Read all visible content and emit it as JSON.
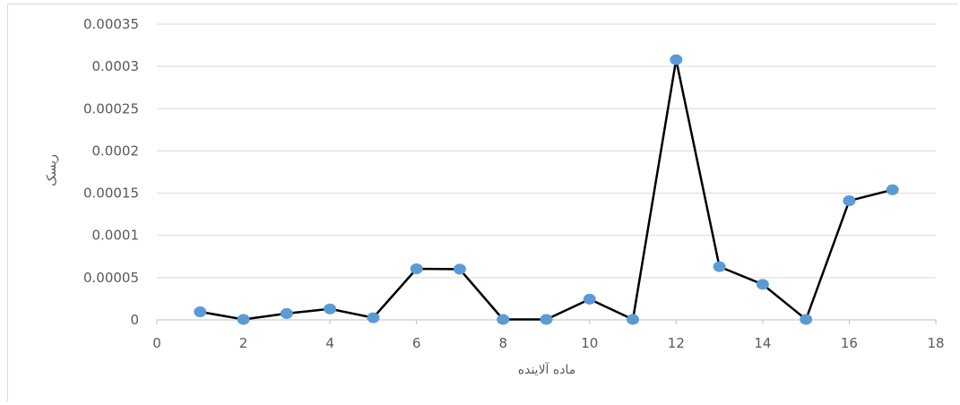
{
  "chart_data": {
    "type": "scatter",
    "title": "",
    "xlabel": "ماده آلاینده",
    "ylabel": "ریسک",
    "xlim": [
      0,
      18
    ],
    "ylim": [
      0,
      0.00035
    ],
    "x_ticks": [
      "0",
      "2",
      "4",
      "6",
      "8",
      "10",
      "12",
      "14",
      "16",
      "18"
    ],
    "y_ticks": [
      "0",
      "0.00005",
      "0.0001",
      "0.00015",
      "0.0002",
      "0.00025",
      "0.0003",
      "0.00035"
    ],
    "grid": "horizontal",
    "legend": "none",
    "line_color": "#000000",
    "marker_color": "#5b9bd5",
    "series": [
      {
        "x": [
          1,
          2,
          3,
          4,
          5,
          6,
          7,
          8,
          9,
          10,
          11,
          12,
          13,
          14,
          15,
          16,
          17
        ],
        "y": [
          9.5e-06,
          5e-07,
          7.5e-06,
          1.3e-05,
          2.5e-06,
          6.05e-05,
          6e-05,
          5e-07,
          5e-07,
          2.45e-05,
          5e-07,
          0.000308,
          6.3e-05,
          4.2e-05,
          5e-07,
          0.000141,
          0.000154
        ]
      }
    ]
  }
}
